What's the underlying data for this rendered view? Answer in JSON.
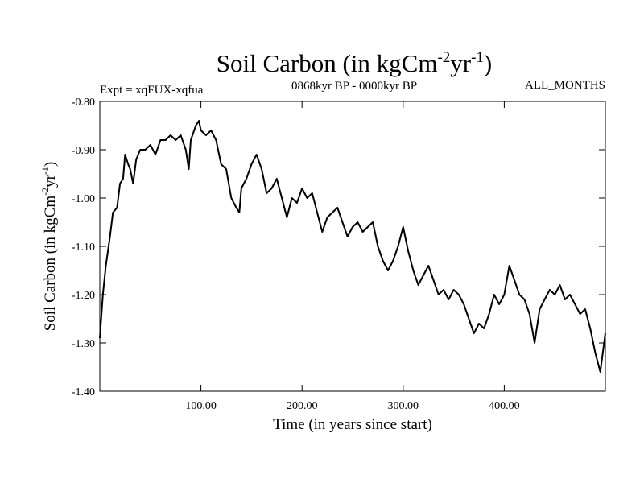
{
  "chart_data": {
    "type": "line",
    "title_base": "Soil Carbon (in kgCm",
    "title_sup1": "-2",
    "title_mid": "yr",
    "title_sup2": "-1",
    "title_end": ")",
    "left_header": "Expt = xqFUX-xqfua",
    "center_header": "0868kyr BP - 0000kyr BP",
    "right_header": "ALL_MONTHS",
    "xlabel": "Time (in years since start)",
    "ylabel_base": "Soil Carbon (in kgCm",
    "ylabel_sup1": "-2",
    "ylabel_mid": "yr",
    "ylabel_sup2": "-1",
    "ylabel_end": ")",
    "xlim": [
      0,
      500
    ],
    "ylim": [
      -1.4,
      -0.8
    ],
    "x_ticks": [
      100,
      200,
      300,
      400
    ],
    "x_tick_labels": [
      "100.00",
      "200.00",
      "300.00",
      "400.00"
    ],
    "y_ticks": [
      -0.8,
      -0.9,
      -1.0,
      -1.1,
      -1.2,
      -1.3,
      -1.4
    ],
    "y_tick_labels": [
      "-0.80",
      "-0.90",
      "-1.00",
      "-1.10",
      "-1.20",
      "-1.30",
      "-1.40"
    ],
    "grid": false,
    "series": [
      {
        "name": "Soil Carbon",
        "color": "#000000",
        "x": [
          0,
          3,
          6,
          10,
          13,
          17,
          20,
          23,
          25,
          28,
          30,
          33,
          36,
          40,
          45,
          50,
          55,
          60,
          65,
          70,
          75,
          80,
          85,
          88,
          90,
          95,
          98,
          100,
          105,
          110,
          115,
          120,
          125,
          130,
          135,
          138,
          140,
          145,
          150,
          155,
          160,
          165,
          170,
          175,
          180,
          185,
          190,
          195,
          200,
          205,
          210,
          215,
          220,
          225,
          230,
          235,
          240,
          245,
          250,
          255,
          260,
          265,
          270,
          275,
          280,
          285,
          290,
          295,
          300,
          305,
          310,
          315,
          320,
          325,
          330,
          335,
          340,
          345,
          350,
          355,
          360,
          365,
          370,
          375,
          380,
          385,
          390,
          395,
          400,
          405,
          410,
          415,
          420,
          425,
          430,
          435,
          440,
          445,
          450,
          455,
          460,
          465,
          470,
          475,
          480,
          485,
          490,
          495,
          500
        ],
        "y": [
          -1.29,
          -1.2,
          -1.14,
          -1.08,
          -1.03,
          -1.02,
          -0.97,
          -0.96,
          -0.91,
          -0.93,
          -0.94,
          -0.97,
          -0.92,
          -0.9,
          -0.9,
          -0.89,
          -0.91,
          -0.88,
          -0.88,
          -0.87,
          -0.88,
          -0.87,
          -0.9,
          -0.94,
          -0.88,
          -0.85,
          -0.84,
          -0.86,
          -0.87,
          -0.86,
          -0.88,
          -0.93,
          -0.94,
          -1.0,
          -1.02,
          -1.03,
          -0.98,
          -0.96,
          -0.93,
          -0.91,
          -0.94,
          -0.99,
          -0.98,
          -0.96,
          -1.0,
          -1.04,
          -1.0,
          -1.01,
          -0.98,
          -1.0,
          -0.99,
          -1.03,
          -1.07,
          -1.04,
          -1.03,
          -1.02,
          -1.05,
          -1.08,
          -1.06,
          -1.05,
          -1.07,
          -1.06,
          -1.05,
          -1.1,
          -1.13,
          -1.15,
          -1.13,
          -1.1,
          -1.06,
          -1.11,
          -1.15,
          -1.18,
          -1.16,
          -1.14,
          -1.17,
          -1.2,
          -1.19,
          -1.21,
          -1.19,
          -1.2,
          -1.22,
          -1.25,
          -1.28,
          -1.26,
          -1.27,
          -1.24,
          -1.2,
          -1.22,
          -1.2,
          -1.14,
          -1.17,
          -1.2,
          -1.21,
          -1.24,
          -1.3,
          -1.23,
          -1.21,
          -1.19,
          -1.2,
          -1.18,
          -1.21,
          -1.2,
          -1.22,
          -1.24,
          -1.23,
          -1.27,
          -1.32,
          -1.36,
          -1.28
        ]
      }
    ]
  }
}
